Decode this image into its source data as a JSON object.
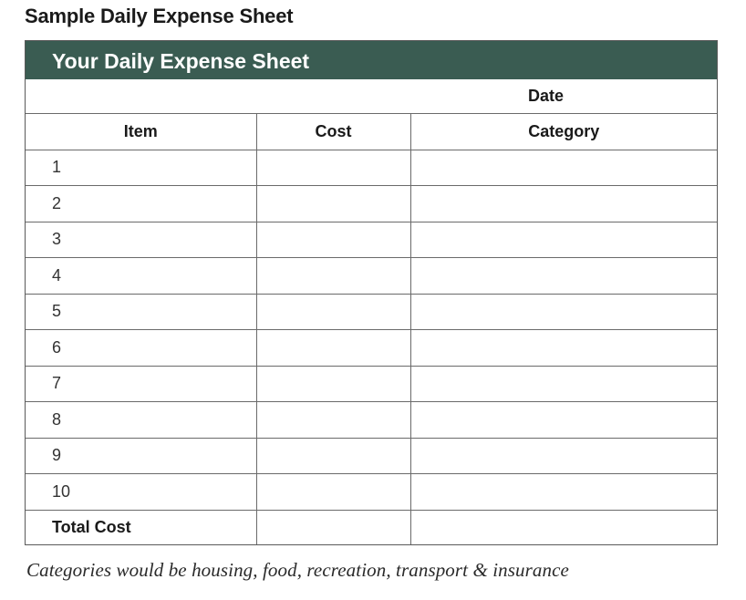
{
  "document": {
    "title": "Sample Daily Expense Sheet",
    "footnote": "Categories would be housing, food, recreation, transport & insurance"
  },
  "sheet": {
    "banner_title": "Your Daily Expense Sheet",
    "date_label": "Date",
    "colors": {
      "banner": "#3a5c52",
      "grid": "#6a6a6a"
    },
    "columns": [
      "Item",
      "Cost",
      "Category"
    ],
    "rows": [
      {
        "item": "1",
        "cost": "",
        "category": ""
      },
      {
        "item": "2",
        "cost": "",
        "category": ""
      },
      {
        "item": "3",
        "cost": "",
        "category": ""
      },
      {
        "item": "4",
        "cost": "",
        "category": ""
      },
      {
        "item": "5",
        "cost": "",
        "category": ""
      },
      {
        "item": "6",
        "cost": "",
        "category": ""
      },
      {
        "item": "7",
        "cost": "",
        "category": ""
      },
      {
        "item": "8",
        "cost": "",
        "category": ""
      },
      {
        "item": "9",
        "cost": "",
        "category": ""
      },
      {
        "item": "10",
        "cost": "",
        "category": ""
      }
    ],
    "total_label": "Total Cost"
  }
}
